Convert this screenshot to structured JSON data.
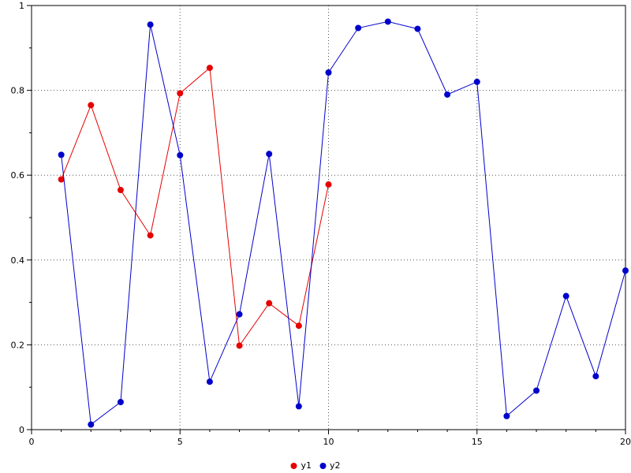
{
  "chart_data": {
    "type": "line",
    "title": "",
    "xlabel": "",
    "ylabel": "",
    "xlim": [
      0,
      20
    ],
    "ylim": [
      0,
      1
    ],
    "x_ticks": [
      0,
      5,
      10,
      15,
      20
    ],
    "y_ticks": [
      0,
      0.2,
      0.4,
      0.6,
      0.8,
      1
    ],
    "x_tick_labels": [
      "0",
      "5",
      "10",
      "15",
      "20"
    ],
    "y_tick_labels": [
      "0",
      "0.2",
      "0.4",
      "0.6",
      "0.8",
      "1"
    ],
    "x_minor_step": 1,
    "y_minor_step": 0.1,
    "grid": true,
    "grid_style": "dotted",
    "legend_position": "bottom-center",
    "frame_color": "#000000",
    "grid_color": "#555555",
    "marker": "filled-circle",
    "marker_radius": 4,
    "series": [
      {
        "name": "y1",
        "color": "#e60000",
        "x": [
          1,
          2,
          3,
          4,
          5,
          6,
          7,
          8,
          9,
          10
        ],
        "y": [
          0.59,
          0.765,
          0.565,
          0.458,
          0.793,
          0.853,
          0.198,
          0.298,
          0.245,
          0.578
        ]
      },
      {
        "name": "y2",
        "color": "#0000cc",
        "x": [
          1,
          2,
          3,
          4,
          5,
          6,
          7,
          8,
          9,
          10,
          11,
          12,
          13,
          14,
          15,
          16,
          17,
          18,
          19,
          20
        ],
        "y": [
          0.648,
          0.012,
          0.065,
          0.955,
          0.647,
          0.113,
          0.272,
          0.65,
          0.055,
          0.842,
          0.947,
          0.962,
          0.945,
          0.79,
          0.82,
          0.032,
          0.092,
          0.315,
          0.126,
          0.375
        ]
      }
    ]
  },
  "legend": {
    "items": [
      {
        "label": "y1"
      },
      {
        "label": "y2"
      }
    ]
  }
}
